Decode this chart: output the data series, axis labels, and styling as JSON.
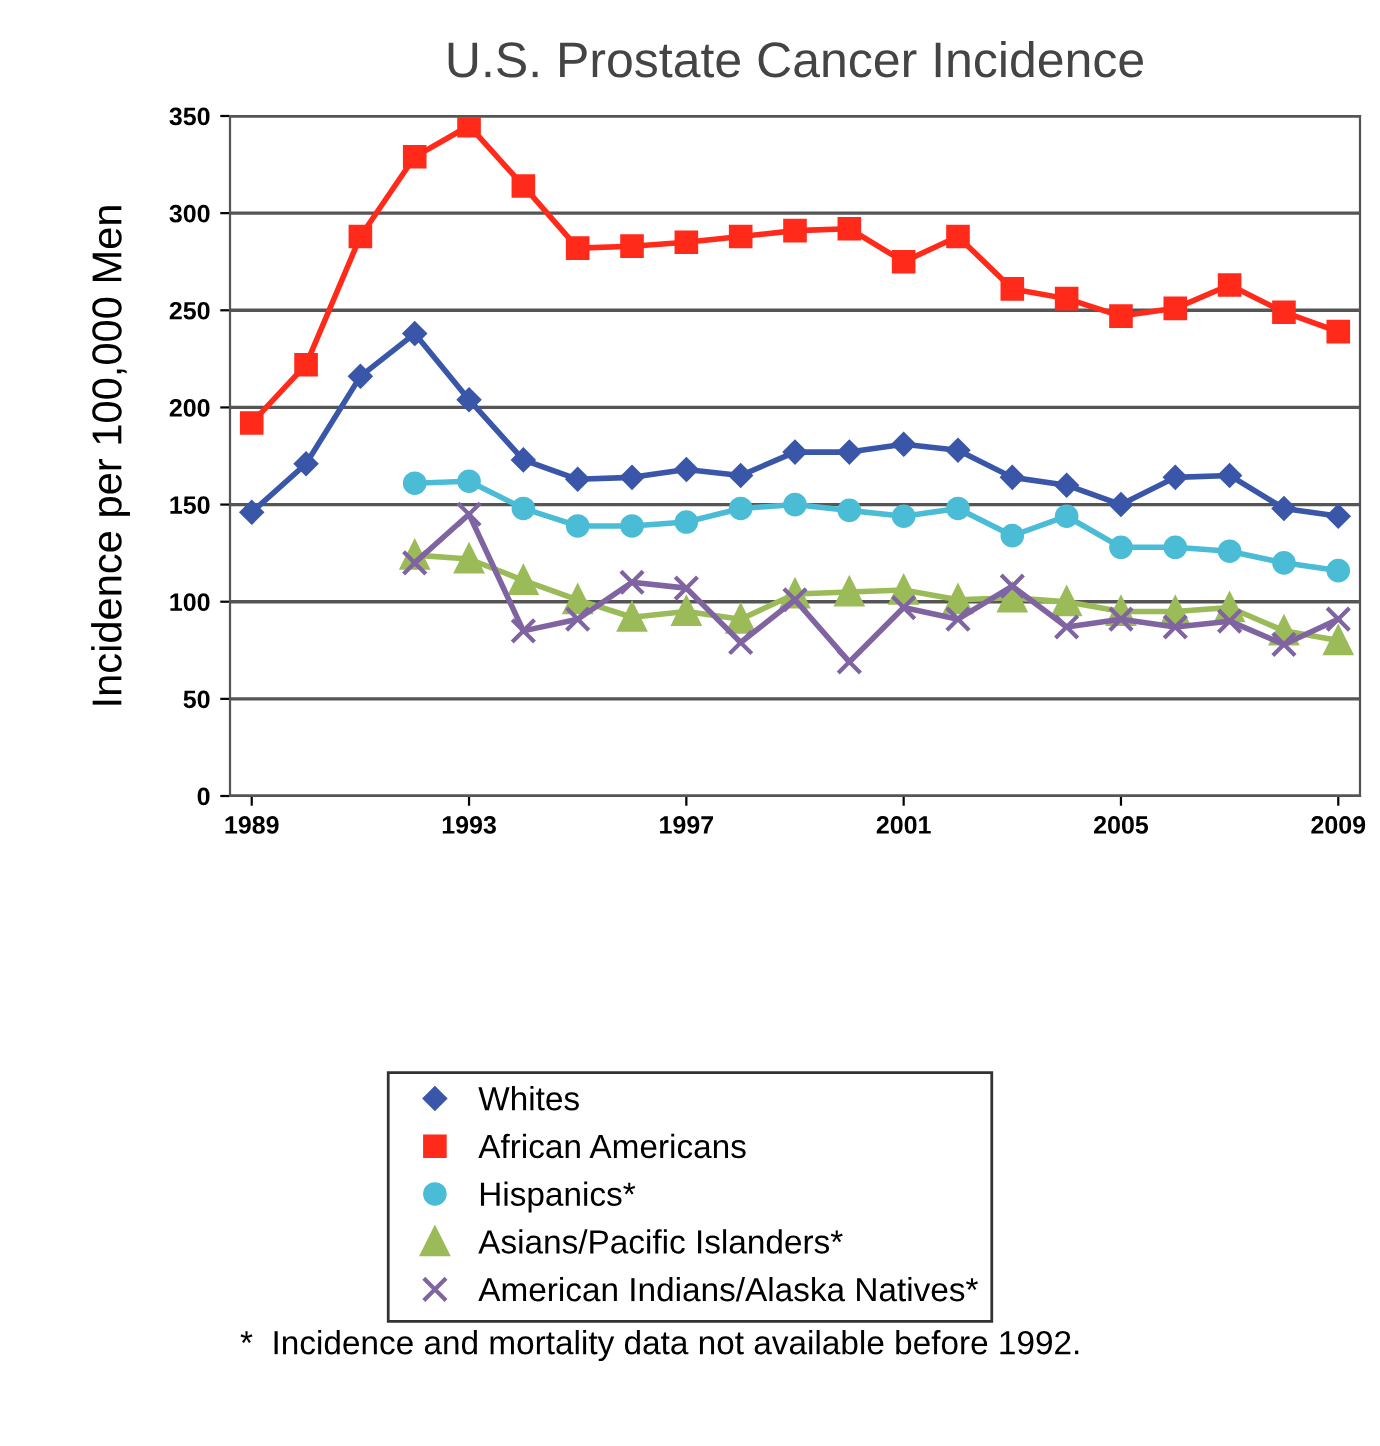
{
  "chart_data": {
    "type": "line",
    "title": "U.S. Prostate Cancer Incidence",
    "ylabel": "Incidence per 100,000 Men",
    "x": [
      1989,
      1990,
      1991,
      1992,
      1993,
      1994,
      1995,
      1996,
      1997,
      1998,
      1999,
      2000,
      2001,
      2002,
      2003,
      2004,
      2005,
      2006,
      2007,
      2008,
      2009
    ],
    "xlim": [
      1988.6,
      2009.4
    ],
    "xticks": [
      1989,
      1993,
      1997,
      2001,
      2005,
      2009
    ],
    "ylim": [
      0,
      350
    ],
    "yticks": [
      0,
      50,
      100,
      150,
      200,
      250,
      300,
      350
    ],
    "grid": "y",
    "legend": "bottom",
    "series": [
      {
        "name": "Whites",
        "color": "#3a56a8",
        "marker": "diamond",
        "values": [
          146,
          171,
          216,
          238,
          204,
          173,
          163,
          164,
          168,
          165,
          177,
          177,
          181,
          178,
          164,
          160,
          150,
          164,
          165,
          148,
          144
        ]
      },
      {
        "name": "African Americans",
        "color": "#ff2a1a",
        "marker": "square",
        "values": [
          192,
          222,
          288,
          329,
          345,
          314,
          282,
          283,
          285,
          288,
          291,
          292,
          275,
          288,
          261,
          256,
          247,
          251,
          263,
          249,
          239
        ]
      },
      {
        "name": "Hispanics*",
        "color": "#4bbcd6",
        "marker": "circle",
        "values": [
          null,
          null,
          null,
          161,
          162,
          148,
          139,
          139,
          141,
          148,
          150,
          147,
          144,
          148,
          134,
          144,
          128,
          128,
          126,
          120,
          116
        ]
      },
      {
        "name": "Asians/Pacific Islanders*",
        "color": "#9bbb59",
        "marker": "triangle",
        "values": [
          null,
          null,
          null,
          124,
          122,
          111,
          101,
          92,
          95,
          91,
          104,
          105,
          106,
          101,
          102,
          100,
          95,
          95,
          97,
          85,
          80
        ]
      },
      {
        "name": "American Indians/Alaska Natives*",
        "color": "#8064a2",
        "marker": "cross",
        "values": [
          null,
          null,
          null,
          120,
          145,
          85,
          91,
          110,
          107,
          79,
          101,
          69,
          97,
          91,
          108,
          87,
          91,
          87,
          90,
          78,
          91
        ]
      }
    ],
    "annotations": [
      "*  Incidence and mortality data not available before 1992."
    ]
  }
}
